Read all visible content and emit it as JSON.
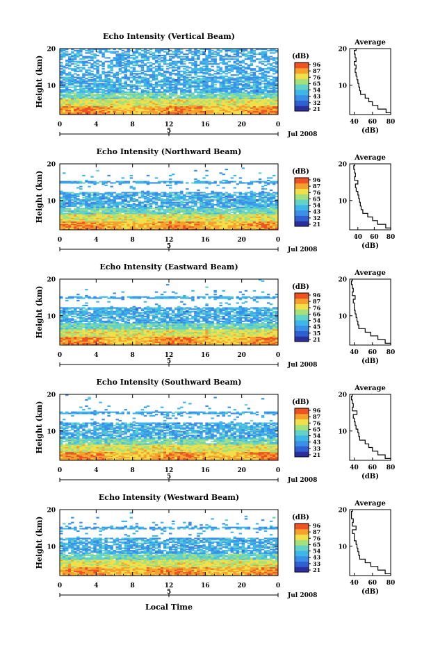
{
  "figure": {
    "xlabel": "Local Time",
    "date": "Jul 2008",
    "day_marker": "5",
    "colorbar_unit": "(dB)",
    "colorbar_ticks": [
      [
        "96",
        "87",
        "76",
        "65",
        "54",
        "43",
        "32",
        "21"
      ],
      [
        "96",
        "87",
        "76",
        "65",
        "54",
        "43",
        "32",
        "21"
      ],
      [
        "96",
        "87",
        "76",
        "66",
        "54",
        "45",
        "35",
        "21"
      ],
      [
        "96",
        "87",
        "76",
        "65",
        "54",
        "43",
        "33",
        "21"
      ],
      [
        "96",
        "87",
        "76",
        "65",
        "54",
        "43",
        "33",
        "21"
      ]
    ],
    "colorbar_colors": [
      "#2b2f9e",
      "#2f5fd0",
      "#3a8fe6",
      "#3fb6e8",
      "#63d2c8",
      "#a6e07a",
      "#f2e04a",
      "#f5a12e",
      "#ee5222"
    ]
  },
  "chart_data": [
    {
      "type": "heatmap",
      "title": "Echo Intensity (Vertical Beam)",
      "ylabel": "Height (km)",
      "xlim": [
        0,
        24
      ],
      "ylim": [
        2,
        20
      ],
      "xticks": [
        "0",
        "4",
        "8",
        "12",
        "16",
        "20",
        "0"
      ],
      "yticks": [
        "10",
        "20"
      ],
      "colorbar_range": [
        21,
        96
      ],
      "average": {
        "title": "Average",
        "xlabel": "(dB)",
        "xticks": [
          "40",
          "60",
          "80"
        ],
        "yticks": [
          "10",
          "20"
        ],
        "xlim": [
          35,
          80
        ],
        "profile": [
          [
            80,
            2
          ],
          [
            75,
            3
          ],
          [
            66,
            4
          ],
          [
            60,
            5
          ],
          [
            56,
            6
          ],
          [
            52,
            7
          ],
          [
            47,
            8
          ],
          [
            46,
            9
          ],
          [
            45,
            10
          ],
          [
            44,
            11
          ],
          [
            43,
            12
          ],
          [
            42,
            13
          ],
          [
            41,
            14
          ],
          [
            42,
            15
          ],
          [
            40,
            16
          ],
          [
            42,
            17
          ],
          [
            41,
            18
          ],
          [
            40,
            19
          ],
          [
            42,
            20
          ]
        ]
      }
    },
    {
      "type": "heatmap",
      "title": "Echo Intensity (Northward Beam)",
      "ylabel": "Height (km)",
      "xlim": [
        0,
        24
      ],
      "ylim": [
        2,
        20
      ],
      "xticks": [
        "0",
        "4",
        "8",
        "12",
        "16",
        "20",
        "0"
      ],
      "yticks": [
        "10",
        "20"
      ],
      "colorbar_range": [
        21,
        96
      ],
      "average": {
        "title": "Average",
        "xlabel": "(dB)",
        "xticks": [
          "40",
          "60",
          "80"
        ],
        "yticks": [
          "10",
          "20"
        ],
        "xlim": [
          30,
          80
        ],
        "profile": [
          [
            80,
            2
          ],
          [
            74,
            3
          ],
          [
            64,
            4
          ],
          [
            58,
            5
          ],
          [
            52,
            6
          ],
          [
            46,
            7
          ],
          [
            44,
            8
          ],
          [
            43,
            9
          ],
          [
            42,
            10
          ],
          [
            41,
            11
          ],
          [
            40,
            12
          ],
          [
            38,
            13
          ],
          [
            37,
            14
          ],
          [
            40,
            15
          ],
          [
            36,
            16
          ],
          [
            37,
            17
          ],
          [
            36,
            18
          ],
          [
            35,
            19
          ],
          [
            36,
            20
          ]
        ]
      }
    },
    {
      "type": "heatmap",
      "title": "Echo Intensity (Eastward Beam)",
      "ylabel": "Height (km)",
      "xlim": [
        0,
        24
      ],
      "ylim": [
        2,
        20
      ],
      "xticks": [
        "0",
        "4",
        "8",
        "12",
        "16",
        "20",
        "0"
      ],
      "yticks": [
        "10",
        "20"
      ],
      "colorbar_range": [
        21,
        96
      ],
      "average": {
        "title": "Average",
        "xlabel": "(dB)",
        "xticks": [
          "40",
          "60",
          "80"
        ],
        "yticks": [
          "10",
          "20"
        ],
        "xlim": [
          35,
          80
        ],
        "profile": [
          [
            80,
            2
          ],
          [
            74,
            3
          ],
          [
            66,
            4
          ],
          [
            58,
            5
          ],
          [
            52,
            6
          ],
          [
            45,
            7
          ],
          [
            44,
            8
          ],
          [
            43,
            9
          ],
          [
            42,
            10
          ],
          [
            41,
            11
          ],
          [
            40,
            12
          ],
          [
            40,
            13
          ],
          [
            39,
            14
          ],
          [
            41,
            15
          ],
          [
            38,
            16
          ],
          [
            39,
            17
          ],
          [
            38,
            18
          ],
          [
            37,
            19
          ],
          [
            38,
            20
          ]
        ]
      }
    },
    {
      "type": "heatmap",
      "title": "Echo Intensity (Southward Beam)",
      "ylabel": "Height (km)",
      "xlim": [
        0,
        24
      ],
      "ylim": [
        2,
        20
      ],
      "xticks": [
        "0",
        "4",
        "8",
        "12",
        "16",
        "20",
        "0"
      ],
      "yticks": [
        "10",
        "20"
      ],
      "colorbar_range": [
        21,
        96
      ],
      "average": {
        "title": "Average",
        "xlabel": "(dB)",
        "xticks": [
          "40",
          "60",
          "80"
        ],
        "yticks": [
          "10",
          "20"
        ],
        "xlim": [
          35,
          80
        ],
        "profile": [
          [
            80,
            2
          ],
          [
            74,
            3
          ],
          [
            66,
            4
          ],
          [
            60,
            5
          ],
          [
            56,
            6
          ],
          [
            52,
            7
          ],
          [
            46,
            8
          ],
          [
            45,
            9
          ],
          [
            44,
            10
          ],
          [
            42,
            11
          ],
          [
            41,
            12
          ],
          [
            40,
            13
          ],
          [
            39,
            14
          ],
          [
            43,
            15
          ],
          [
            38,
            16
          ],
          [
            39,
            17
          ],
          [
            38,
            18
          ],
          [
            37,
            19
          ],
          [
            38,
            20
          ]
        ]
      }
    },
    {
      "type": "heatmap",
      "title": "Echo Intensity (Westward Beam)",
      "ylabel": "Height (km)",
      "xlim": [
        0,
        24
      ],
      "ylim": [
        2,
        20
      ],
      "xticks": [
        "0",
        "4",
        "8",
        "12",
        "16",
        "20",
        "0"
      ],
      "yticks": [
        "10",
        "20"
      ],
      "colorbar_range": [
        21,
        96
      ],
      "average": {
        "title": "Average",
        "xlabel": "(dB)",
        "xticks": [
          "40",
          "60",
          "80"
        ],
        "yticks": [
          "10",
          "20"
        ],
        "xlim": [
          35,
          80
        ],
        "profile": [
          [
            80,
            2
          ],
          [
            74,
            3
          ],
          [
            66,
            4
          ],
          [
            58,
            5
          ],
          [
            52,
            6
          ],
          [
            46,
            7
          ],
          [
            45,
            8
          ],
          [
            44,
            9
          ],
          [
            43,
            10
          ],
          [
            42,
            11
          ],
          [
            40,
            12
          ],
          [
            40,
            13
          ],
          [
            38,
            14
          ],
          [
            42,
            15
          ],
          [
            38,
            16
          ],
          [
            39,
            17
          ],
          [
            37,
            18
          ],
          [
            37,
            19
          ],
          [
            38,
            20
          ]
        ]
      }
    }
  ]
}
